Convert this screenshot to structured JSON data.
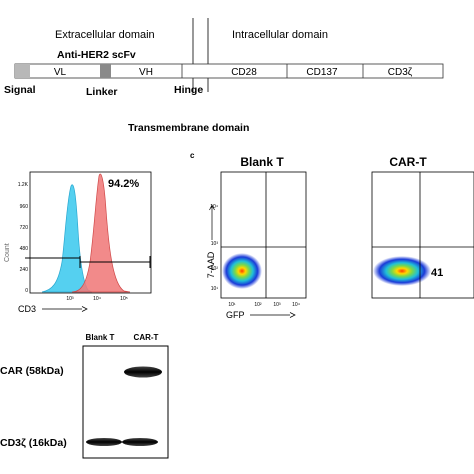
{
  "schematic": {
    "domains": {
      "extracellular": "Extracellular domain",
      "intracellular": "Intracellular domain",
      "transmembrane": "Transmembrane  domain"
    },
    "scfv": "Anti-HER2 scFv",
    "segments": {
      "vl": "VL",
      "vh": "VH",
      "cd28": "CD28",
      "cd137": "CD137",
      "cd3z": "CD3ζ"
    },
    "labels": {
      "signal": "Signal",
      "linker": "Linker",
      "hinge": "Hinge"
    }
  },
  "panel_b": {
    "percent": "94.2%",
    "y_ticks": [
      "1.2K",
      "960",
      "720",
      "480",
      "240",
      "0"
    ],
    "x_ticks": [
      "10³",
      "10⁴",
      "10⁵"
    ],
    "xlabel": "CD3",
    "ylabel": "Count",
    "colors": {
      "blank": "#55d0f0",
      "car": "#f07a7a"
    }
  },
  "panel_c": {
    "letter": "c",
    "plot1_title": "Blank T",
    "plot2_title": "CAR-T",
    "ylabel": "7-AAD",
    "xlabel": "GFP",
    "y_ticks": [
      "10⁴",
      "10³",
      "10²",
      "10¹"
    ],
    "x_ticks": [
      "10¹",
      "10²",
      "10³",
      "10⁴"
    ],
    "quadrant_value": "41"
  },
  "western": {
    "lanes": [
      "Blank T",
      "CAR-T"
    ],
    "bands": [
      "CAR (58kDa)",
      "CD3ζ (16kDa)"
    ]
  }
}
